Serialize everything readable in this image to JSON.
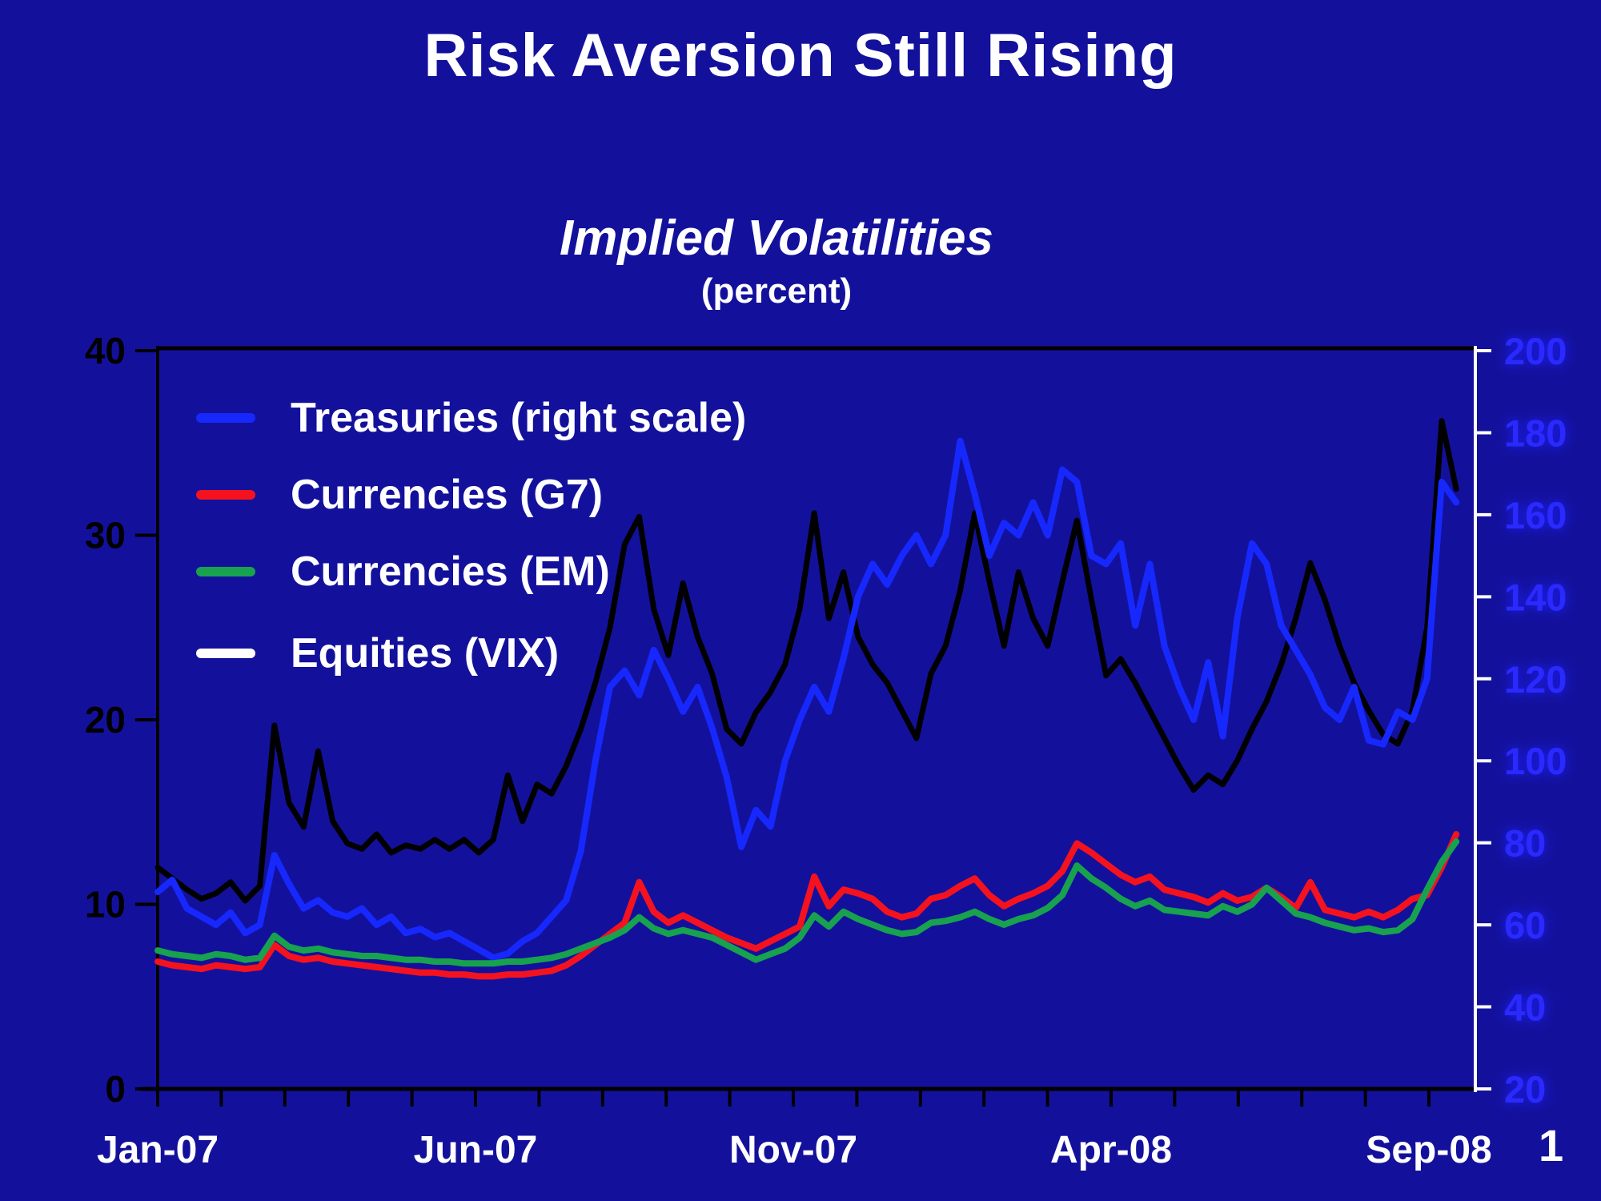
{
  "slide": {
    "title": "Risk Aversion Still Rising",
    "page_number": "1"
  },
  "colors": {
    "background": "#13119c",
    "axis_left": "#000000",
    "axis_bottom": "#000000",
    "axis_right": "#ffffff",
    "right_axis_label": "#2a2aff",
    "text": "#ffffff"
  },
  "chart": {
    "subtitle": "Implied Volatilities",
    "unit_label": "(percent)",
    "legend": [
      {
        "label": "Treasuries (right scale)",
        "swatch_color": "#1728ff"
      },
      {
        "label": "Currencies (G7)",
        "swatch_color": "#f5121f"
      },
      {
        "label": "Currencies (EM)",
        "swatch_color": "#18a14e"
      },
      {
        "label": "Equities (VIX)",
        "swatch_color": "#ffffff"
      }
    ]
  },
  "chart_data": {
    "type": "line",
    "title": "Implied Volatilities",
    "unit": "percent",
    "grid": false,
    "legend_position": "top-left-inside",
    "x_axis": {
      "labels": [
        {
          "text": "Jan-07",
          "m": 0
        },
        {
          "text": "Jun-07",
          "m": 5
        },
        {
          "text": "Nov-07",
          "m": 10
        },
        {
          "text": "Apr-08",
          "m": 15
        },
        {
          "text": "Sep-08",
          "m": 20
        }
      ],
      "axis_max_months": 20.73,
      "minor_tick_count": 21
    },
    "left_axis": {
      "min": 0,
      "max": 40,
      "ticks": [
        40,
        30,
        20,
        10,
        0
      ]
    },
    "right_axis": {
      "min": 20,
      "max": 200,
      "ticks": [
        200,
        180,
        160,
        140,
        120,
        100,
        80,
        60,
        40,
        20
      ]
    },
    "series": [
      {
        "name": "Equities (VIX)",
        "axis": "left",
        "color": "#000000",
        "width": 7,
        "x_start": 0,
        "x_end": 20.43,
        "values": [
          12.0,
          11.4,
          10.8,
          10.3,
          10.6,
          11.2,
          10.2,
          11.0,
          19.7,
          15.5,
          14.2,
          18.3,
          14.5,
          13.3,
          13.0,
          13.8,
          12.8,
          13.2,
          13.0,
          13.5,
          13.0,
          13.5,
          12.8,
          13.5,
          17.0,
          14.5,
          16.5,
          16.0,
          17.5,
          19.5,
          22.0,
          25.0,
          29.5,
          31.0,
          26.0,
          23.5,
          27.4,
          24.5,
          22.5,
          19.5,
          18.7,
          20.4,
          21.5,
          23.0,
          26.0,
          31.2,
          25.5,
          28.0,
          24.5,
          23.0,
          22.0,
          20.5,
          19.0,
          22.5,
          24.0,
          27.0,
          31.2,
          27.5,
          24.0,
          28.0,
          25.5,
          24.0,
          27.5,
          30.8,
          26.5,
          22.4,
          23.3,
          22.0,
          20.5,
          19.0,
          17.5,
          16.2,
          17.0,
          16.5,
          17.8,
          19.5,
          21.0,
          23.0,
          25.5,
          28.5,
          26.5,
          24.0,
          22.0,
          20.5,
          19.2,
          18.7,
          20.5,
          25.0,
          36.2,
          32.5
        ]
      },
      {
        "name": "Treasuries (right scale)",
        "axis": "right",
        "color": "#1728ff",
        "width": 8,
        "x_start": 0,
        "x_end": 20.43,
        "values": [
          68,
          71,
          64,
          62,
          60,
          63,
          58,
          60,
          77,
          70,
          64,
          66,
          63,
          62,
          64,
          60,
          62,
          58,
          59,
          57,
          58,
          56,
          54,
          52,
          53,
          56,
          58,
          62,
          66,
          78,
          100,
          118,
          122,
          116,
          127,
          120,
          112,
          118,
          108,
          96,
          79,
          88,
          84,
          100,
          110,
          118,
          112,
          125,
          140,
          148,
          143,
          150,
          155,
          148,
          155,
          178,
          165,
          150,
          158,
          155,
          163,
          155,
          171,
          168,
          150,
          148,
          153,
          133,
          148,
          128,
          118,
          110,
          124,
          106,
          135,
          153,
          148,
          133,
          127,
          121,
          113,
          110,
          118,
          105,
          104,
          112,
          110,
          120,
          168,
          163
        ]
      },
      {
        "name": "Currencies (G7)",
        "axis": "left",
        "color": "#f5121f",
        "width": 8,
        "x_start": 0,
        "x_end": 20.43,
        "values": [
          6.9,
          6.7,
          6.6,
          6.5,
          6.7,
          6.6,
          6.5,
          6.6,
          7.8,
          7.2,
          7.0,
          7.1,
          6.9,
          6.8,
          6.7,
          6.6,
          6.5,
          6.4,
          6.3,
          6.3,
          6.2,
          6.2,
          6.1,
          6.1,
          6.2,
          6.2,
          6.3,
          6.4,
          6.7,
          7.2,
          7.8,
          8.4,
          9.0,
          11.2,
          9.6,
          9.0,
          9.4,
          9.0,
          8.6,
          8.2,
          7.9,
          7.6,
          8.0,
          8.4,
          8.8,
          11.5,
          9.9,
          10.8,
          10.6,
          10.3,
          9.6,
          9.3,
          9.5,
          10.3,
          10.5,
          11.0,
          11.4,
          10.5,
          9.9,
          10.3,
          10.6,
          11.0,
          11.8,
          13.3,
          12.8,
          12.2,
          11.6,
          11.2,
          11.5,
          10.8,
          10.6,
          10.4,
          10.1,
          10.6,
          10.2,
          10.4,
          10.9,
          10.4,
          9.8,
          11.2,
          9.7,
          9.5,
          9.3,
          9.6,
          9.3,
          9.7,
          10.3,
          10.5,
          12.0,
          13.8
        ]
      },
      {
        "name": "Currencies (EM)",
        "axis": "left",
        "color": "#18a14e",
        "width": 8,
        "x_start": 0,
        "x_end": 20.43,
        "values": [
          7.5,
          7.3,
          7.2,
          7.1,
          7.3,
          7.2,
          7.0,
          7.1,
          8.3,
          7.7,
          7.5,
          7.6,
          7.4,
          7.3,
          7.2,
          7.2,
          7.1,
          7.0,
          7.0,
          6.9,
          6.9,
          6.8,
          6.8,
          6.8,
          6.9,
          6.9,
          7.0,
          7.1,
          7.3,
          7.6,
          7.9,
          8.2,
          8.6,
          9.3,
          8.7,
          8.4,
          8.6,
          8.4,
          8.2,
          7.8,
          7.4,
          7.0,
          7.3,
          7.6,
          8.2,
          9.4,
          8.8,
          9.6,
          9.2,
          8.9,
          8.6,
          8.4,
          8.5,
          9.0,
          9.1,
          9.3,
          9.6,
          9.2,
          8.9,
          9.2,
          9.4,
          9.8,
          10.5,
          12.1,
          11.4,
          10.9,
          10.3,
          9.9,
          10.2,
          9.7,
          9.6,
          9.5,
          9.4,
          9.9,
          9.6,
          10.0,
          10.9,
          10.2,
          9.5,
          9.3,
          9.0,
          8.8,
          8.6,
          8.7,
          8.5,
          8.6,
          9.2,
          10.8,
          12.3,
          13.4
        ]
      }
    ]
  }
}
